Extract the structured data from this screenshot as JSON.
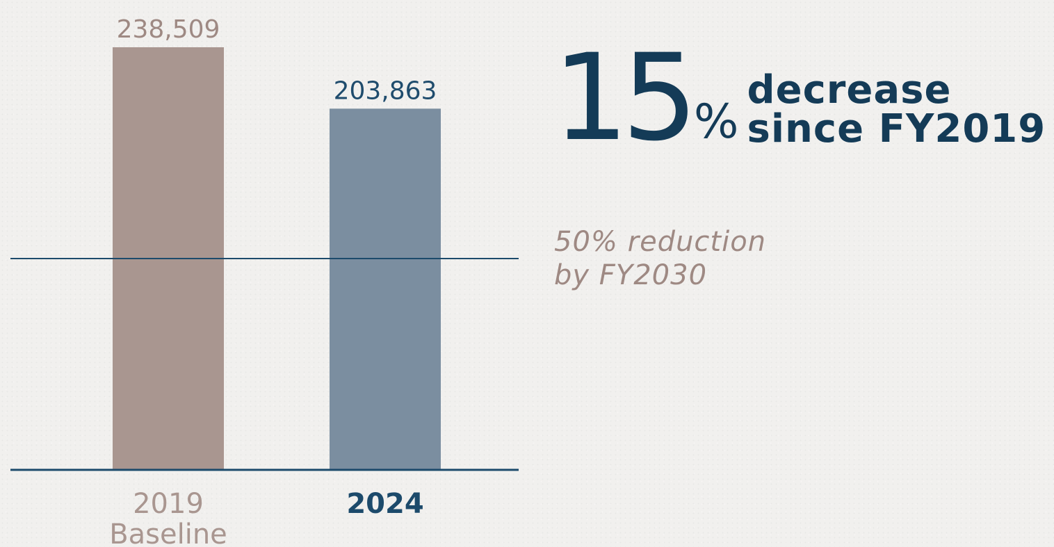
{
  "chart_data": {
    "type": "bar",
    "categories": [
      {
        "line1": "2019",
        "line2": "Baseline"
      },
      {
        "line1": "2024",
        "line2": ""
      }
    ],
    "values": [
      238509,
      203863
    ],
    "value_labels": [
      "238,509",
      "203,863"
    ],
    "bar_colors": [
      "#a99690",
      "#7b8ea0"
    ],
    "value_label_colors": [
      "#9e8983",
      "#1f4c6d"
    ],
    "category_label_colors": [
      "#a99690",
      "#1c4a6b"
    ],
    "category_label_weights": [
      "normal",
      "bold"
    ],
    "target_line_value": 119254.5,
    "axis_color": "#1c4a6b",
    "ylim": [
      0,
      238509
    ],
    "grid": false
  },
  "headline": {
    "number": "15",
    "percent_sign": "%",
    "text_line1": "decrease",
    "text_line2": "since FY2019"
  },
  "target_note": {
    "line1": "50% reduction",
    "line2": "by FY2030"
  }
}
